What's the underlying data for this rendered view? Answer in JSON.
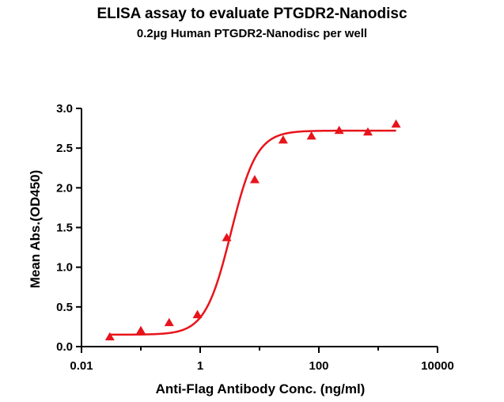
{
  "chart_data": {
    "type": "scatter",
    "title": "ELISA assay to evaluate PTGDR2-Nanodisc",
    "subtitle": "0.2µg Human PTGDR2-Nanodisc per well",
    "xlabel": "Anti-Flag Antibody Conc. (ng/ml)",
    "ylabel": "Mean Abs.(OD450)",
    "xscale": "log",
    "xlim": [
      0.01,
      10000
    ],
    "ylim": [
      0.0,
      3.0
    ],
    "xticks": [
      "0.01",
      "1",
      "100",
      "10000"
    ],
    "yticks": [
      "0.0",
      "0.5",
      "1.0",
      "1.5",
      "2.0",
      "2.5",
      "3.0"
    ],
    "grid": false,
    "marker": "triangle",
    "color": "#e8141b",
    "series": [
      {
        "points": [
          {
            "x": 0.03,
            "y": 0.12
          },
          {
            "x": 0.1,
            "y": 0.2
          },
          {
            "x": 0.3,
            "y": 0.3
          },
          {
            "x": 0.9,
            "y": 0.4
          },
          {
            "x": 2.8,
            "y": 1.37
          },
          {
            "x": 8.3,
            "y": 2.1
          },
          {
            "x": 25,
            "y": 2.6
          },
          {
            "x": 75,
            "y": 2.65
          },
          {
            "x": 220,
            "y": 2.72
          },
          {
            "x": 670,
            "y": 2.7
          },
          {
            "x": 2000,
            "y": 2.8
          }
        ],
        "fit": {
          "model": "4PL",
          "bottom": 0.15,
          "top": 2.72,
          "ec50": 3.3,
          "hill": 2.0
        }
      }
    ]
  }
}
